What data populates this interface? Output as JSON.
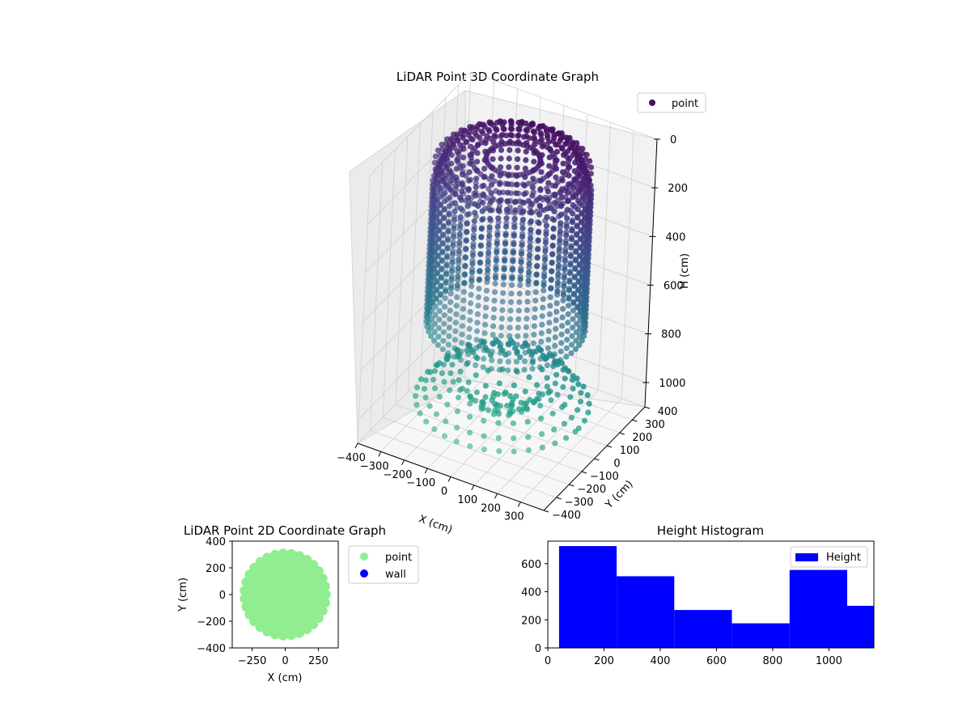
{
  "chart_data": [
    {
      "type": "scatter3d",
      "title": "LiDAR Point 3D Coordinate Graph",
      "xlabel": "X (cm)",
      "ylabel": "Y (cm)",
      "zlabel": "H (cm)",
      "xlim": [
        -400,
        400
      ],
      "ylim": [
        -400,
        400
      ],
      "zlim": [
        0,
        1100
      ],
      "z_inverted": true,
      "x_ticks": [
        "−400",
        "−300",
        "−200",
        "−100",
        "0",
        "100",
        "200",
        "300"
      ],
      "y_ticks": [
        "−400",
        "−300",
        "−200",
        "−100",
        "0",
        "100",
        "200",
        "300",
        "400"
      ],
      "z_ticks": [
        "0",
        "200",
        "400",
        "600",
        "800",
        "1000"
      ],
      "colormap": "viridis (colored by depth)",
      "grid": true,
      "legend": {
        "position": "top-right",
        "entries": [
          {
            "label": "point",
            "color": "#440f5e"
          }
        ]
      },
      "series": [
        {
          "name": "point",
          "description": "dome-shaped cloud: walls radius ~300 cm from H 0 to ~700, floor disc around H ~1000"
        }
      ]
    },
    {
      "type": "scatter",
      "title": "LiDAR Point 2D Coordinate Graph",
      "xlabel": "X (cm)",
      "ylabel": "Y (cm)",
      "xlim": [
        -400,
        400
      ],
      "ylim": [
        -400,
        400
      ],
      "x_ticks": [
        "−250",
        "0",
        "250"
      ],
      "y_ticks": [
        "400",
        "200",
        "0",
        "−200",
        "−400"
      ],
      "legend": {
        "position": "outside-right",
        "entries": [
          {
            "label": "point",
            "color": "#90ee90"
          },
          {
            "label": "wall",
            "color": "#0000ff"
          }
        ]
      },
      "series": [
        {
          "name": "point",
          "color": "#90ee90",
          "description": "filled disc of radius ~300 cm, clipped at x=±400"
        },
        {
          "name": "wall",
          "color": "#0000ff",
          "values": []
        }
      ]
    },
    {
      "type": "bar",
      "title": "Height Histogram",
      "xlim": [
        0,
        1160
      ],
      "ylim": [
        0,
        760
      ],
      "x_ticks": [
        "0",
        "200",
        "400",
        "600",
        "800",
        "1000"
      ],
      "y_ticks": [
        "0",
        "200",
        "400",
        "600"
      ],
      "legend": {
        "position": "top-right",
        "entries": [
          {
            "label": "Height",
            "color": "#0000ff"
          }
        ]
      },
      "bins": [
        {
          "x0": 40,
          "x1": 245,
          "count": 725
        },
        {
          "x0": 245,
          "x1": 450,
          "count": 510
        },
        {
          "x0": 450,
          "x1": 655,
          "count": 270
        },
        {
          "x0": 655,
          "x1": 860,
          "count": 175
        },
        {
          "x0": 860,
          "x1": 1065,
          "count": 555
        },
        {
          "x0": 1065,
          "x1": 1160,
          "count": 300
        }
      ],
      "color": "#0000ff"
    }
  ]
}
